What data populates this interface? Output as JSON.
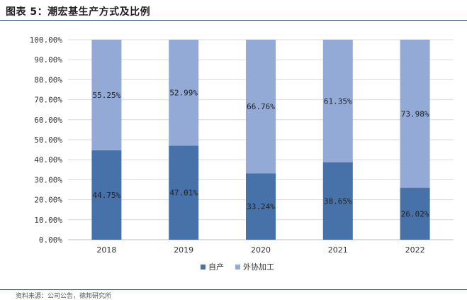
{
  "header": {
    "title": "图表 5：潮宏基生产方式及比例"
  },
  "footer": {
    "source": "资料来源：公司公告，德邦研究所"
  },
  "colors": {
    "self": "#4672a9",
    "outsource": "#93aad6",
    "title_rule": "#1f3864"
  },
  "chart_data": {
    "type": "bar",
    "stacked": true,
    "percent": true,
    "title": "",
    "xlabel": "",
    "ylabel": "",
    "categories": [
      "2018",
      "2019",
      "2020",
      "2021",
      "2022"
    ],
    "series": [
      {
        "name": "自产",
        "values": [
          44.75,
          47.01,
          33.24,
          38.65,
          26.02
        ],
        "labels": [
          "44.75%",
          "47.01%",
          "33.24%",
          "38.65%",
          "26.02%"
        ]
      },
      {
        "name": "外协加工",
        "values": [
          55.25,
          52.99,
          66.76,
          61.35,
          73.98
        ],
        "labels": [
          "55.25%",
          "52.99%",
          "66.76%",
          "61.35%",
          "73.98%"
        ]
      }
    ],
    "yticks": [
      "0.00%",
      "10.00%",
      "20.00%",
      "30.00%",
      "40.00%",
      "50.00%",
      "60.00%",
      "70.00%",
      "80.00%",
      "90.00%",
      "100.00%"
    ],
    "ylim": [
      0,
      100
    ],
    "grid": true,
    "legend_position": "bottom"
  }
}
